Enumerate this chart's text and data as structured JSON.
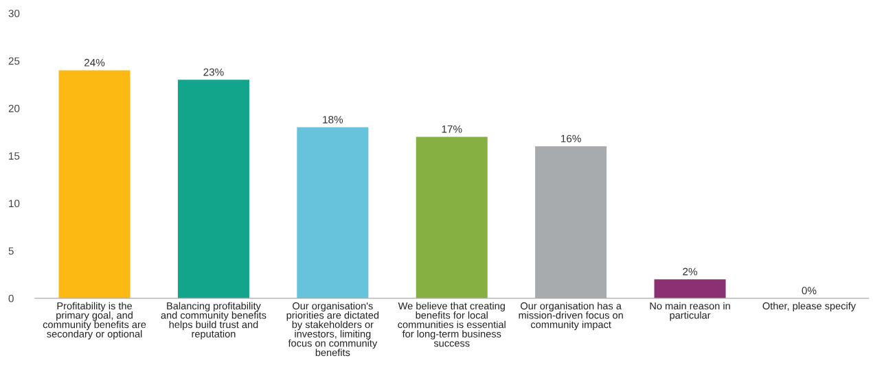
{
  "chart_data": {
    "type": "bar",
    "categories": [
      "Profitability is the primary goal, and community benefits are secondary or optional",
      "Balancing profitability and community benefits helps build trust and reputation",
      "Our organisation's priorities are dictated by stakeholders or investors, limiting focus on community benefits",
      "We believe that creating benefits for local communities is essential for long-term business success",
      "Our organisation has a mission-driven focus on community impact",
      "No main reason in particular",
      "Other, please specify"
    ],
    "values": [
      24,
      23,
      18,
      17,
      16,
      2,
      0
    ],
    "colors": [
      "#fdb913",
      "#13a58c",
      "#67c2dc",
      "#86b042",
      "#a7abae",
      "#8a3073",
      "#4a5f9a"
    ],
    "value_labels": [
      "24%",
      "23%",
      "18%",
      "17%",
      "16%",
      "2%",
      "0%"
    ],
    "ylim": [
      0,
      30
    ],
    "yticks": [
      0,
      5,
      10,
      15,
      20,
      25,
      30
    ],
    "grid": false,
    "legend": false
  }
}
